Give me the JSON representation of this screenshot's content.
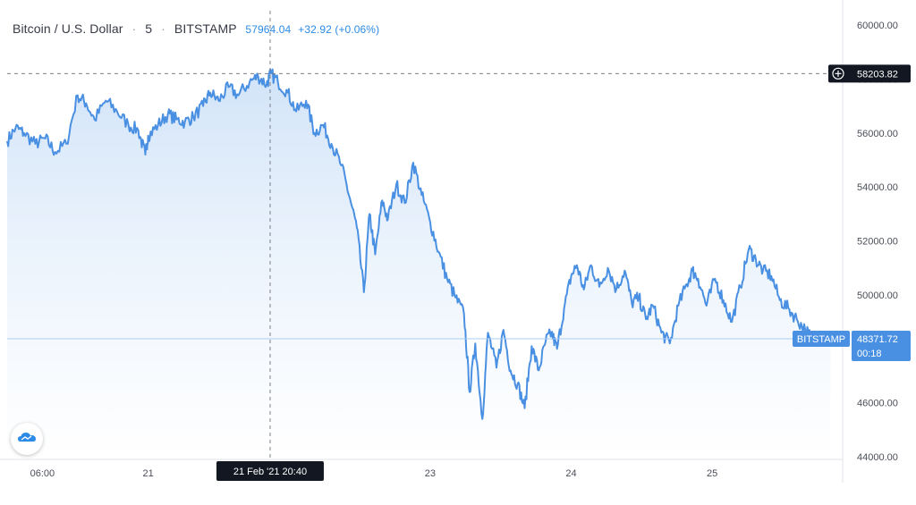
{
  "header": {
    "symbol": "Bitcoin / U.S. Dollar",
    "interval": "5",
    "exchange": "BITSTAMP",
    "last_price": "57964.04",
    "change": "+32.92 (+0.06%)",
    "separator": "·"
  },
  "crosshair": {
    "price_label": "58203.82",
    "time_label": "21 Feb '21   20:40",
    "plus_icon": "plus-circle-icon"
  },
  "last_badge": {
    "exchange": "BITSTAMP",
    "price": "48371.72",
    "countdown": "00:18"
  },
  "colors": {
    "line": "#4a90e2",
    "area_top": "#cfe2f8",
    "area_bottom": "#ffffff",
    "badge": "#4a90e2",
    "crosshair_label": "#131722"
  },
  "chart_data": {
    "type": "area",
    "symbol": "BTCUSD",
    "y_ticks": [
      "60000.00",
      "58000.00",
      "56000.00",
      "54000.00",
      "52000.00",
      "50000.00",
      "48000.00",
      "46000.00",
      "44000.00"
    ],
    "y_tick_values": [
      60000,
      58000,
      56000,
      54000,
      52000,
      50000,
      48000,
      46000,
      44000
    ],
    "ylim": [
      43900,
      60600
    ],
    "x_ticks": [
      "06:00",
      "21",
      "21 Feb '21  20:40",
      "23",
      "24",
      "25"
    ],
    "x_tick_values": [
      5.25,
      6.0,
      6.865,
      8.0,
      9.0,
      10.0
    ],
    "xlim": [
      5.0,
      10.9
    ],
    "grid": false,
    "series": [
      {
        "x": [
          5.0,
          5.06,
          5.12,
          5.2,
          5.27,
          5.34,
          5.42,
          5.5,
          5.56,
          5.62,
          5.7,
          5.78,
          5.86,
          5.93,
          5.98,
          6.0,
          6.07,
          6.14,
          6.2,
          6.26,
          6.32,
          6.39,
          6.44,
          6.5,
          6.57,
          6.64,
          6.72,
          6.78,
          6.84,
          6.87,
          6.92,
          6.99,
          7.05,
          7.12,
          7.18,
          7.24,
          7.3,
          7.37,
          7.43,
          7.48,
          7.53,
          7.57,
          7.61,
          7.66,
          7.7,
          7.76,
          7.82,
          7.88,
          7.94,
          8.0,
          8.06,
          8.12,
          8.18,
          8.24,
          8.28,
          8.32,
          8.37,
          8.41,
          8.47,
          8.52,
          8.57,
          8.62,
          8.67,
          8.72,
          8.77,
          8.82,
          8.86,
          8.9,
          8.95,
          9.0,
          9.04,
          9.09,
          9.14,
          9.2,
          9.26,
          9.32,
          9.38,
          9.43,
          9.48,
          9.53,
          9.58,
          9.64,
          9.7,
          9.76,
          9.82,
          9.86,
          9.9,
          9.96,
          10.02,
          10.08,
          10.14,
          10.2,
          10.26,
          10.31,
          10.36,
          10.42,
          10.48,
          10.54,
          10.6,
          10.66,
          10.72,
          10.78,
          10.84
        ],
        "y": [
          55700,
          56200,
          56000,
          55600,
          55800,
          55300,
          55600,
          57400,
          57100,
          56500,
          57200,
          56800,
          56300,
          56100,
          55200,
          55900,
          56300,
          56700,
          56500,
          56400,
          56600,
          57000,
          57500,
          57200,
          57700,
          57400,
          57900,
          58100,
          57800,
          58203,
          57900,
          57500,
          56800,
          57200,
          56000,
          56300,
          55600,
          54800,
          53600,
          52500,
          50100,
          53000,
          51500,
          53500,
          52800,
          54100,
          53400,
          54900,
          53700,
          52700,
          51600,
          50600,
          49900,
          49300,
          46400,
          48200,
          45400,
          48600,
          47300,
          48700,
          47200,
          46700,
          45800,
          48100,
          47200,
          48300,
          48600,
          48000,
          49500,
          50700,
          51100,
          50200,
          51100,
          50300,
          51000,
          50200,
          50900,
          49700,
          49900,
          49100,
          49600,
          48600,
          48200,
          49600,
          50400,
          50900,
          50600,
          49600,
          50600,
          49800,
          49000,
          50300,
          51700,
          51300,
          50900,
          50700,
          49800,
          49500,
          49100,
          48700,
          48300,
          48400,
          48371.72
        ]
      }
    ]
  }
}
